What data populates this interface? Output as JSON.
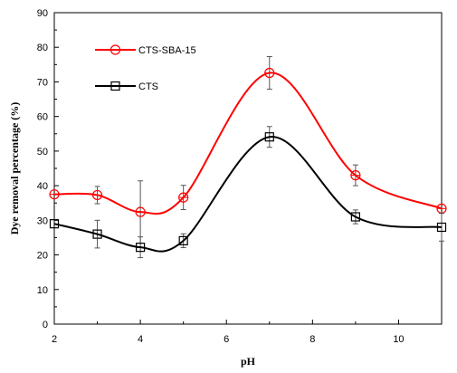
{
  "chart_data": {
    "type": "line",
    "xlabel": "pH",
    "ylabel": "Dye removal percentage (%)",
    "xlim": [
      2,
      11
    ],
    "ylim": [
      0,
      90
    ],
    "x_ticks": [
      2,
      4,
      6,
      8,
      10
    ],
    "y_ticks": [
      0,
      10,
      20,
      30,
      40,
      50,
      60,
      70,
      80,
      90
    ],
    "x_tick_labels": [
      "2",
      "4",
      "6",
      "8",
      "10"
    ],
    "y_tick_labels": [
      "0",
      "10",
      "20",
      "30",
      "40",
      "50",
      "60",
      "70",
      "80",
      "90"
    ],
    "grid": false,
    "legend_position": "top-left",
    "series": [
      {
        "name": "CTS-SBA-15",
        "color": "#ff0000",
        "marker": "circle",
        "x": [
          2,
          3,
          4,
          5,
          7,
          9,
          11
        ],
        "y": [
          37.5,
          37.3,
          32.4,
          36.6,
          72.6,
          43.0,
          33.4
        ],
        "error": [
          0,
          2.5,
          9.0,
          3.5,
          4.7,
          3.0,
          0
        ]
      },
      {
        "name": "CTS",
        "color": "#000000",
        "marker": "square",
        "x": [
          2,
          3,
          4,
          5,
          7,
          9,
          11
        ],
        "y": [
          29.0,
          26.0,
          22.2,
          24.1,
          54.1,
          31.0,
          28.0
        ],
        "error": [
          0,
          4.0,
          3.0,
          2.0,
          3.0,
          2.0,
          4.0
        ]
      }
    ]
  }
}
